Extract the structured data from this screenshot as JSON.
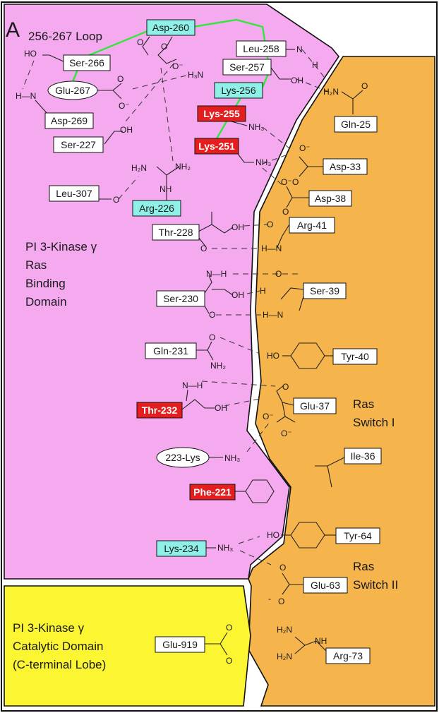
{
  "panel_letter": "A",
  "loop_label": "256-267  Loop",
  "regions": {
    "rbd": [
      "PI 3-Kinase γ",
      "Ras",
      "Binding",
      "Domain"
    ],
    "catalytic": [
      "PI 3-Kinase γ",
      "Catalytic Domain",
      "(C-terminal Lobe)"
    ],
    "switch1": [
      "Ras",
      "Switch I"
    ],
    "switch2": [
      "Ras",
      "Switch II"
    ]
  },
  "colors": {
    "rbd_fill": "#f5aaf0",
    "ras_fill": "#f5b54c",
    "catalytic_fill": "#fbf532",
    "highlight_cyan": "#8ff0e8",
    "highlight_red": "#e41e1e",
    "loop_green": "#2ee83a"
  },
  "residues": {
    "asp260": "Asp-260",
    "leu258": "Leu-258",
    "ser257": "Ser-257",
    "lys256": "Lys-256",
    "ser266": "Ser-266",
    "glu267": "Glu-267",
    "asp269": "Asp-269",
    "lys255": "Lys-255",
    "ser227": "Ser-227",
    "lys251": "Lys-251",
    "arg226": "Arg-226",
    "leu307": "Leu-307",
    "thr228": "Thr-228",
    "ser230": "Ser-230",
    "gln231": "Gln-231",
    "thr232": "Thr-232",
    "lys223": "223-Lys",
    "phe221": "Phe-221",
    "lys234": "Lys-234",
    "glu919": "Glu-919",
    "gln25": "Gln-25",
    "asp33": "Asp-33",
    "asp38": "Asp-38",
    "arg41": "Arg-41",
    "ser39": "Ser-39",
    "tyr40": "Tyr-40",
    "glu37": "Glu-37",
    "ile36": "Ile-36",
    "tyr64": "Tyr-64",
    "glu63": "Glu-63",
    "arg73": "Arg-73"
  },
  "atoms": {
    "ho": "HO",
    "oh": "OH",
    "h": "H",
    "n": "N",
    "nh": "NH",
    "nh3": "NH₃",
    "h3n": "H₃N",
    "h2n": "H₂N",
    "nh2": "NH₂",
    "nh_h": "N—H",
    "h_n": "H—N",
    "o": "O",
    "o_minus": "O⁻",
    "minus": "-",
    "plus": "+"
  }
}
